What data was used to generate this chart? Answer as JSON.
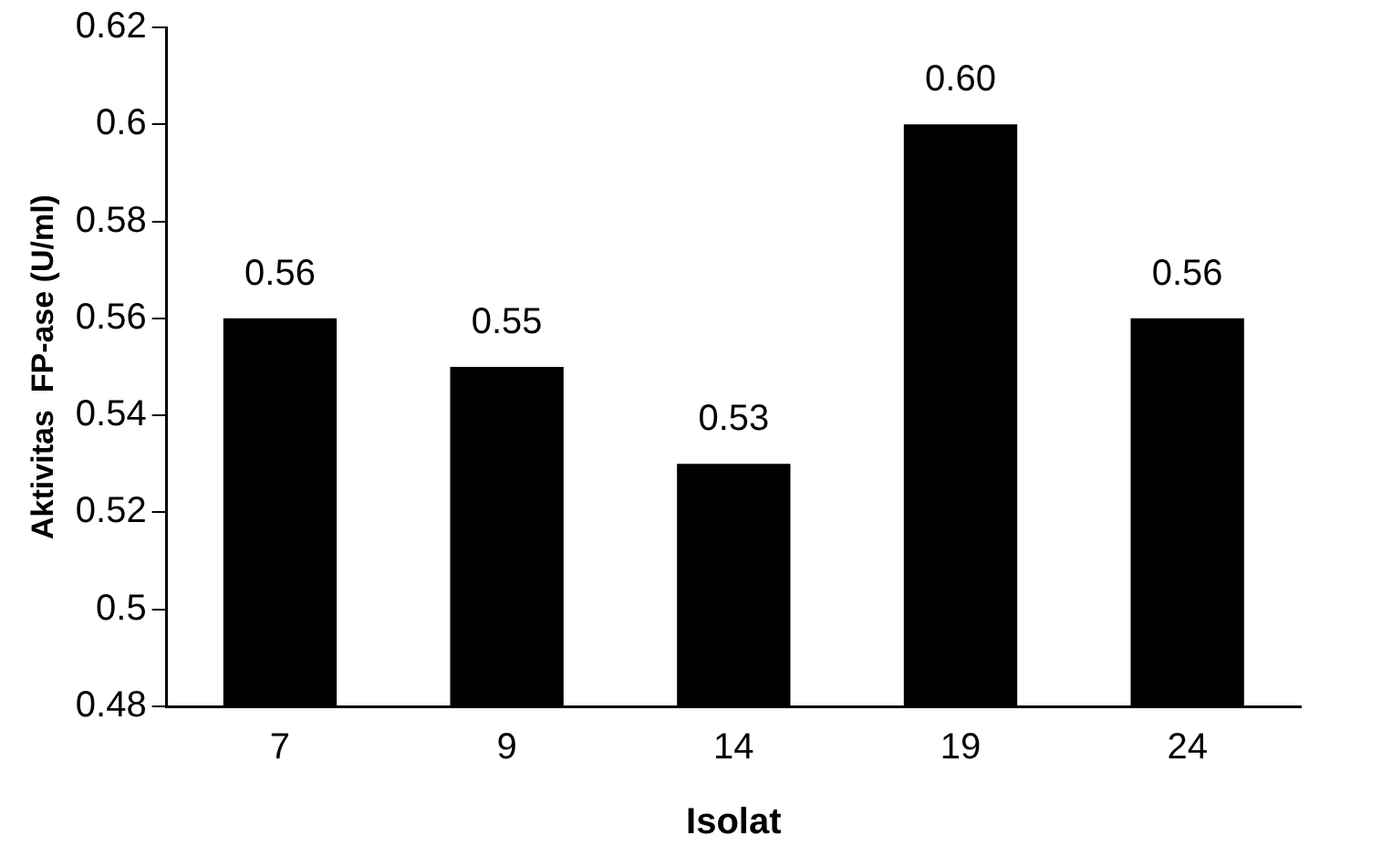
{
  "chart_data": {
    "type": "bar",
    "xlabel": "Isolat",
    "ylabel": "Aktivitas  FP-ase (U/ml)",
    "categories": [
      "7",
      "9",
      "14",
      "19",
      "24"
    ],
    "values": [
      0.56,
      0.55,
      0.53,
      0.6,
      0.56
    ],
    "value_labels": [
      "0.56",
      "0.55",
      "0.53",
      "0.60",
      "0.56"
    ],
    "color": "#000000",
    "ylim": [
      0.48,
      0.62
    ],
    "yticks": [
      0.48,
      0.5,
      0.52,
      0.54,
      0.56,
      0.58,
      0.6,
      0.62
    ],
    "grid": false,
    "legend": false
  }
}
